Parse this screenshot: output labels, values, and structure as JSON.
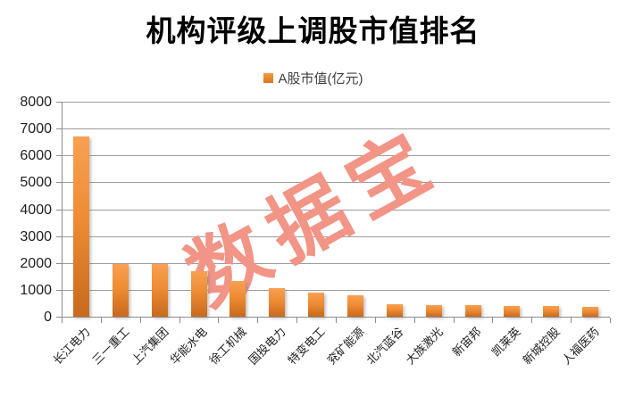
{
  "title": "机构评级上调股市值排名",
  "legend": {
    "label": "A股市值(亿元)"
  },
  "watermark_text": "数据宝",
  "colors": {
    "bar_top": "#F8A052",
    "bar_mid": "#EF8C34",
    "bar_bottom": "#C76A1E",
    "gridline": "#9C9C9C",
    "axis": "#8C8C8C",
    "watermark": "#F29486",
    "legend_text": "#404040",
    "tick_label": "#1F1F1F",
    "title_text": "#000000"
  },
  "chart_data": {
    "type": "bar",
    "title": "机构评级上调股市值排名",
    "legend": [
      "A股市值(亿元)"
    ],
    "legend_position": "top-center",
    "categories": [
      "长江电力",
      "三一重工",
      "上汽集团",
      "华能水电",
      "徐工机械",
      "国投电力",
      "特变电工",
      "兖矿能源",
      "北汽蓝谷",
      "大族激光",
      "新宙邦",
      "凯莱英",
      "新城控股",
      "人福医药"
    ],
    "values": [
      6690,
      1960,
      1955,
      1700,
      1335,
      1055,
      890,
      810,
      450,
      435,
      425,
      395,
      385,
      350
    ],
    "xlabel": "",
    "ylabel": "",
    "ylim": [
      0,
      8000
    ],
    "ytick_step": 1000,
    "yticks": [
      0,
      1000,
      2000,
      3000,
      4000,
      5000,
      6000,
      7000,
      8000
    ],
    "grid": true,
    "watermark": "数据宝"
  }
}
